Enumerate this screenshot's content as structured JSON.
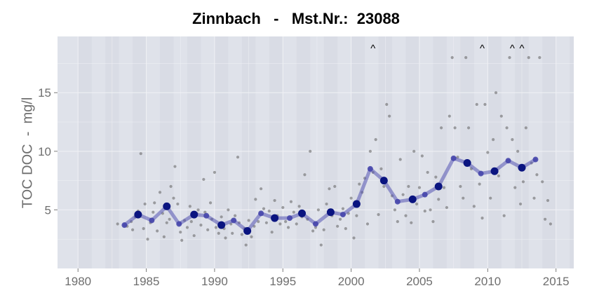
{
  "chart_data": {
    "type": "line",
    "title": "Zinnbach   -   Mst.Nr.:  23088",
    "xlabel": "",
    "ylabel": "TOC DOC  -  mg/l",
    "xlim": [
      1978.5,
      2016.3
    ],
    "ylim": [
      0,
      19.8
    ],
    "x_ticks": [
      "1980",
      "1985",
      "1990",
      "1995",
      "2000",
      "2005",
      "2010",
      "2015"
    ],
    "y_ticks": [
      "5",
      "10",
      "15"
    ],
    "grid": true,
    "legend": "none",
    "colors": {
      "panel": "#dfe2ea",
      "band": "#d9dce5",
      "grid": "#f0f1f5",
      "mean_line": "#5454b2",
      "mean_point": "#0a1480",
      "raw_point": "#6a6a6a"
    },
    "series": [
      {
        "values": [
          [
            1983.4,
            3.7
          ],
          [
            1984.4,
            4.6
          ],
          [
            1985.4,
            4.1
          ],
          [
            1986.5,
            5.3
          ],
          [
            1987.4,
            3.8
          ],
          [
            1988.5,
            4.6
          ],
          [
            1989.4,
            4.5
          ],
          [
            1990.5,
            3.7
          ],
          [
            1991.4,
            4.1
          ],
          [
            1992.4,
            3.2
          ],
          [
            1993.4,
            4.7
          ],
          [
            1994.4,
            4.3
          ],
          [
            1995.5,
            4.3
          ],
          [
            1996.4,
            4.7
          ],
          [
            1997.4,
            3.8
          ],
          [
            1998.5,
            4.8
          ],
          [
            1999.4,
            4.6
          ],
          [
            2000.4,
            5.5
          ],
          [
            2001.4,
            8.5
          ],
          [
            2002.4,
            7.5
          ],
          [
            2003.4,
            5.7
          ],
          [
            2004.5,
            5.9
          ],
          [
            2005.4,
            6.3
          ],
          [
            2006.4,
            7.0
          ],
          [
            2007.5,
            9.4
          ],
          [
            2008.5,
            9.0
          ],
          [
            2009.5,
            8.1
          ],
          [
            2010.5,
            8.3
          ],
          [
            2011.5,
            9.2
          ],
          [
            2012.5,
            8.6
          ],
          [
            2013.5,
            9.3
          ]
        ]
      }
    ],
    "raw_points": [
      [
        1982.9,
        3.8
      ],
      [
        1983.6,
        3.6
      ],
      [
        1983.9,
        4.0
      ],
      [
        1984.0,
        3.3
      ],
      [
        1984.2,
        4.4
      ],
      [
        1984.4,
        4.9
      ],
      [
        1984.6,
        9.8
      ],
      [
        1984.8,
        3.4
      ],
      [
        1984.9,
        5.5
      ],
      [
        1985.1,
        2.5
      ],
      [
        1985.3,
        3.9
      ],
      [
        1985.5,
        4.8
      ],
      [
        1985.6,
        5.6
      ],
      [
        1985.8,
        3.2
      ],
      [
        1986.0,
        6.5
      ],
      [
        1986.2,
        4.7
      ],
      [
        1986.3,
        2.7
      ],
      [
        1986.5,
        3.9
      ],
      [
        1986.7,
        4.2
      ],
      [
        1986.8,
        7.0
      ],
      [
        1987.0,
        6.0
      ],
      [
        1987.1,
        8.7
      ],
      [
        1987.3,
        5.5
      ],
      [
        1987.5,
        3.1
      ],
      [
        1987.6,
        2.4
      ],
      [
        1987.8,
        4.1
      ],
      [
        1988.0,
        3.5
      ],
      [
        1988.2,
        5.3
      ],
      [
        1988.3,
        4.0
      ],
      [
        1988.5,
        2.8
      ],
      [
        1988.7,
        4.7
      ],
      [
        1988.8,
        5.0
      ],
      [
        1989.0,
        3.7
      ],
      [
        1989.2,
        7.6
      ],
      [
        1989.3,
        4.8
      ],
      [
        1989.5,
        3.3
      ],
      [
        1989.7,
        5.6
      ],
      [
        1989.8,
        4.2
      ],
      [
        1990.0,
        8.2
      ],
      [
        1990.1,
        3.5
      ],
      [
        1990.3,
        3.0
      ],
      [
        1990.5,
        4.4
      ],
      [
        1990.7,
        3.4
      ],
      [
        1990.8,
        2.6
      ],
      [
        1991.0,
        5.0
      ],
      [
        1991.2,
        3.8
      ],
      [
        1991.3,
        3.0
      ],
      [
        1991.5,
        4.5
      ],
      [
        1991.7,
        9.5
      ],
      [
        1991.8,
        3.9
      ],
      [
        1992.0,
        2.9
      ],
      [
        1992.2,
        3.4
      ],
      [
        1992.3,
        2.0
      ],
      [
        1992.5,
        4.1
      ],
      [
        1992.7,
        2.7
      ],
      [
        1992.9,
        3.6
      ],
      [
        1993.0,
        5.9
      ],
      [
        1993.2,
        4.0
      ],
      [
        1993.4,
        6.8
      ],
      [
        1993.6,
        5.1
      ],
      [
        1993.8,
        3.9
      ],
      [
        1994.0,
        4.9
      ],
      [
        1994.2,
        3.1
      ],
      [
        1994.4,
        5.8
      ],
      [
        1994.6,
        4.5
      ],
      [
        1994.8,
        3.8
      ],
      [
        1995.0,
        5.2
      ],
      [
        1995.2,
        4.0
      ],
      [
        1995.4,
        3.5
      ],
      [
        1995.6,
        5.7
      ],
      [
        1995.8,
        4.8
      ],
      [
        1996.0,
        3.8
      ],
      [
        1996.2,
        5.3
      ],
      [
        1996.4,
        4.4
      ],
      [
        1996.6,
        8.0
      ],
      [
        1996.8,
        4.2
      ],
      [
        1997.0,
        10.0
      ],
      [
        1997.2,
        3.2
      ],
      [
        1997.4,
        3.5
      ],
      [
        1997.6,
        5.0
      ],
      [
        1997.8,
        2.0
      ],
      [
        1998.0,
        3.3
      ],
      [
        1998.2,
        5.5
      ],
      [
        1998.4,
        6.8
      ],
      [
        1998.6,
        4.5
      ],
      [
        1998.8,
        7.0
      ],
      [
        1999.0,
        3.6
      ],
      [
        1999.2,
        4.2
      ],
      [
        1999.4,
        5.1
      ],
      [
        1999.6,
        3.4
      ],
      [
        1999.8,
        4.7
      ],
      [
        2000.0,
        6.0
      ],
      [
        2000.2,
        2.6
      ],
      [
        2000.4,
        4.5
      ],
      [
        2000.6,
        7.2
      ],
      [
        2000.8,
        6.5
      ],
      [
        2001.0,
        7.7
      ],
      [
        2001.2,
        3.8
      ],
      [
        2001.4,
        10.0
      ],
      [
        2001.6,
        8.2
      ],
      [
        2001.8,
        11.0
      ],
      [
        2002.0,
        4.6
      ],
      [
        2002.2,
        8.5
      ],
      [
        2002.4,
        7.0
      ],
      [
        2002.6,
        14.0
      ],
      [
        2002.8,
        13.0
      ],
      [
        2003.0,
        6.2
      ],
      [
        2003.2,
        5.0
      ],
      [
        2003.4,
        4.0
      ],
      [
        2003.6,
        9.3
      ],
      [
        2003.8,
        6.3
      ],
      [
        2004.0,
        4.5
      ],
      [
        2004.2,
        7.0
      ],
      [
        2004.4,
        3.9
      ],
      [
        2004.6,
        10.0
      ],
      [
        2004.8,
        5.5
      ],
      [
        2005.0,
        6.9
      ],
      [
        2005.2,
        9.6
      ],
      [
        2005.4,
        4.9
      ],
      [
        2005.6,
        8.2
      ],
      [
        2005.8,
        5.0
      ],
      [
        2006.0,
        4.0
      ],
      [
        2006.2,
        7.8
      ],
      [
        2006.4,
        5.9
      ],
      [
        2006.6,
        12.0
      ],
      [
        2006.8,
        6.9
      ],
      [
        2007.0,
        5.2
      ],
      [
        2007.2,
        13.0
      ],
      [
        2007.4,
        18.0
      ],
      [
        2007.6,
        12.0
      ],
      [
        2007.8,
        9.5
      ],
      [
        2008.0,
        7.0
      ],
      [
        2008.2,
        6.0
      ],
      [
        2008.4,
        18.0
      ],
      [
        2008.6,
        12.0
      ],
      [
        2008.8,
        8.5
      ],
      [
        2009.0,
        5.3
      ],
      [
        2009.2,
        14.0
      ],
      [
        2009.4,
        7.2
      ],
      [
        2009.6,
        4.3
      ],
      [
        2009.8,
        14.0
      ],
      [
        2010.0,
        9.9
      ],
      [
        2010.2,
        6.0
      ],
      [
        2010.4,
        11.0
      ],
      [
        2010.6,
        15.0
      ],
      [
        2010.8,
        7.9
      ],
      [
        2011.0,
        13.0
      ],
      [
        2011.2,
        4.5
      ],
      [
        2011.4,
        12.0
      ],
      [
        2011.6,
        18.0
      ],
      [
        2011.8,
        11.0
      ],
      [
        2012.0,
        6.9
      ],
      [
        2012.2,
        10.0
      ],
      [
        2012.4,
        5.5
      ],
      [
        2012.6,
        7.4
      ],
      [
        2012.8,
        12.0
      ],
      [
        2013.0,
        18.0
      ],
      [
        2013.2,
        9.0
      ],
      [
        2013.4,
        6.0
      ],
      [
        2013.6,
        8.0
      ],
      [
        2013.8,
        18.0
      ],
      [
        2014.0,
        7.4
      ],
      [
        2014.2,
        4.2
      ],
      [
        2014.4,
        5.8
      ],
      [
        2014.6,
        3.8
      ]
    ],
    "annotations": [
      {
        "x": 2001.6,
        "text": "^"
      },
      {
        "x": 2009.6,
        "text": "^"
      },
      {
        "x": 2011.8,
        "text": "^"
      },
      {
        "x": 2012.5,
        "text": "^"
      }
    ]
  }
}
